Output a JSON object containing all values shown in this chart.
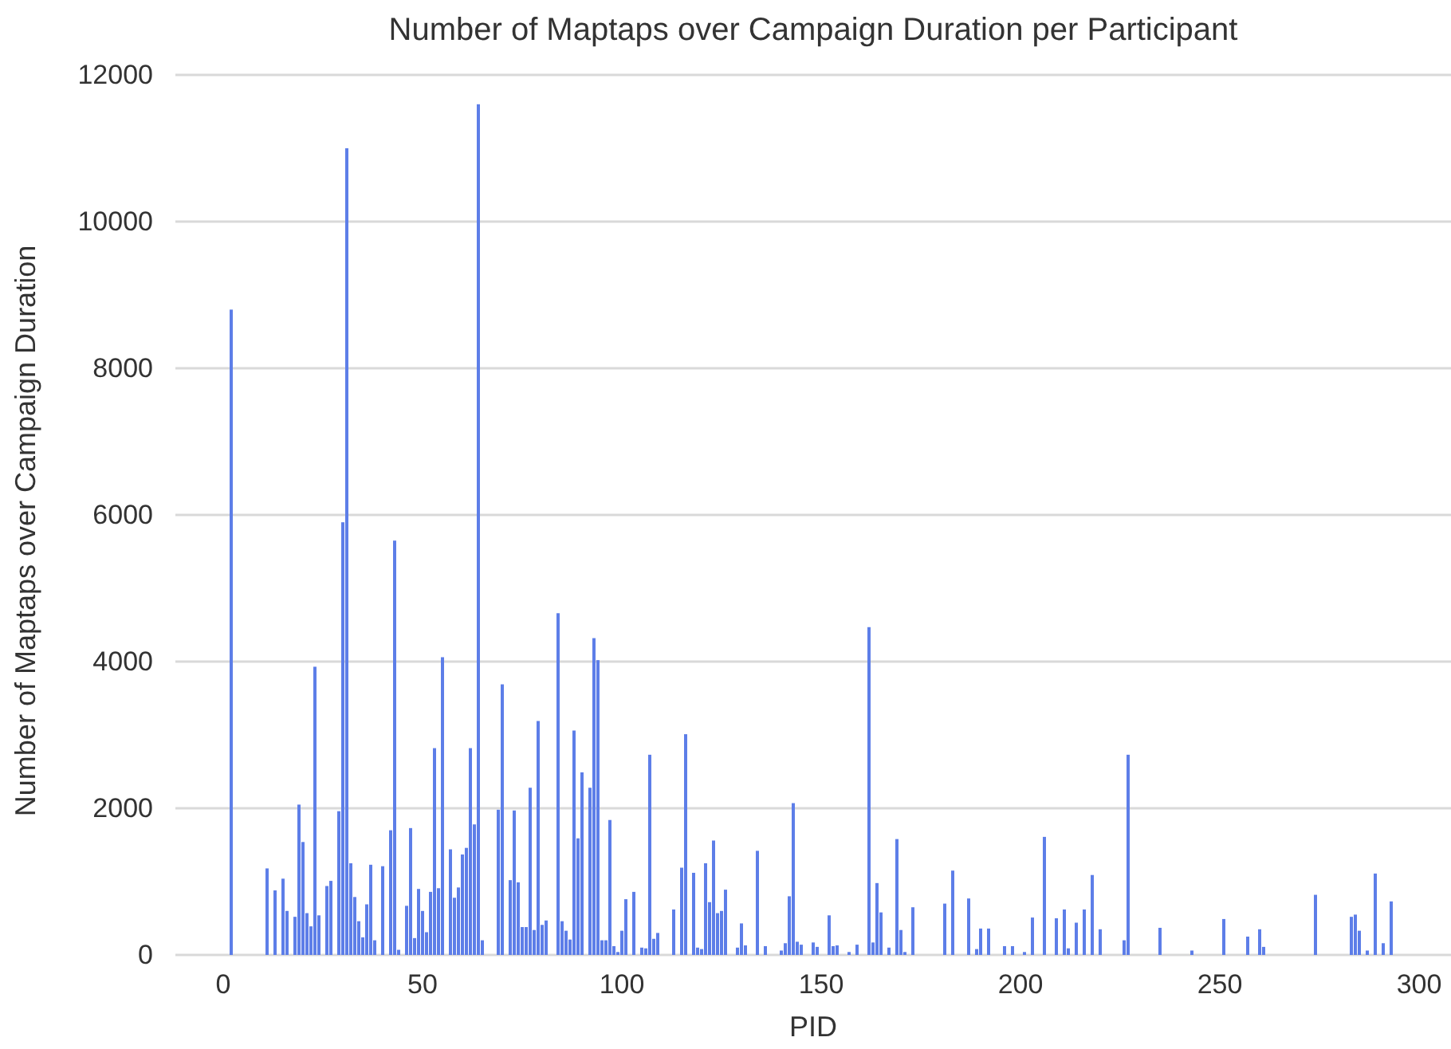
{
  "chart_data": {
    "type": "bar",
    "title": "Number of Maptaps over Campaign Duration per Participant",
    "xlabel": "PID",
    "ylabel": "Number of Maptaps over Campaign Duration",
    "x": [
      2,
      11,
      13,
      15,
      16,
      18,
      19,
      20,
      21,
      22,
      23,
      24,
      26,
      27,
      29,
      30,
      31,
      32,
      33,
      34,
      35,
      36,
      37,
      38,
      40,
      42,
      43,
      44,
      46,
      47,
      48,
      49,
      50,
      51,
      52,
      53,
      54,
      55,
      57,
      58,
      59,
      60,
      61,
      62,
      63,
      64,
      65,
      69,
      70,
      72,
      73,
      74,
      75,
      76,
      77,
      78,
      79,
      80,
      81,
      84,
      85,
      86,
      87,
      88,
      89,
      90,
      92,
      93,
      94,
      95,
      96,
      97,
      98,
      99,
      100,
      101,
      103,
      105,
      106,
      107,
      108,
      109,
      113,
      115,
      116,
      118,
      119,
      120,
      121,
      122,
      123,
      124,
      125,
      126,
      129,
      130,
      131,
      134,
      136,
      140,
      141,
      142,
      143,
      144,
      145,
      148,
      149,
      152,
      153,
      154,
      157,
      159,
      162,
      163,
      164,
      165,
      167,
      169,
      170,
      171,
      173,
      181,
      183,
      187,
      189,
      190,
      192,
      196,
      198,
      201,
      203,
      206,
      209,
      211,
      212,
      214,
      216,
      218,
      220,
      226,
      227,
      235,
      243,
      251,
      257,
      260,
      261,
      274,
      283,
      284,
      285,
      287,
      289,
      291,
      293
    ],
    "values": [
      8800,
      1180,
      880,
      1040,
      600,
      520,
      2050,
      1540,
      570,
      390,
      3930,
      540,
      940,
      1010,
      1960,
      5900,
      11000,
      1250,
      790,
      460,
      240,
      690,
      1230,
      200,
      1210,
      1700,
      5650,
      70,
      670,
      1730,
      230,
      900,
      600,
      310,
      860,
      2820,
      910,
      4060,
      1440,
      780,
      920,
      1370,
      1460,
      2820,
      1780,
      11600,
      200,
      1980,
      3690,
      1020,
      1970,
      990,
      380,
      380,
      2280,
      340,
      3190,
      410,
      470,
      4660,
      460,
      330,
      210,
      3060,
      1590,
      2490,
      2280,
      4320,
      4020,
      200,
      200,
      1840,
      120,
      40,
      330,
      760,
      860,
      100,
      90,
      2730,
      220,
      300,
      620,
      1190,
      3010,
      1120,
      100,
      80,
      1250,
      720,
      1560,
      570,
      600,
      890,
      100,
      430,
      130,
      1420,
      120,
      60,
      160,
      800,
      2070,
      180,
      140,
      170,
      110,
      540,
      120,
      130,
      40,
      140,
      4470,
      170,
      980,
      580,
      100,
      1580,
      340,
      40,
      650,
      700,
      1150,
      770,
      80,
      360,
      360,
      120,
      120,
      40,
      510,
      1610,
      500,
      620,
      90,
      440,
      620,
      1090,
      350,
      200,
      2730,
      370,
      60,
      490,
      250,
      350,
      110,
      820,
      520,
      550,
      330,
      60,
      1110,
      160,
      730
    ],
    "color": "#5d7ee8",
    "xlim": [
      -12,
      308
    ],
    "xticks": [
      0,
      50,
      100,
      150,
      200,
      250,
      300
    ],
    "ylim": [
      0,
      12000
    ],
    "yticks": [
      0,
      2000,
      4000,
      6000,
      8000,
      10000,
      12000
    ],
    "grid": "y"
  }
}
